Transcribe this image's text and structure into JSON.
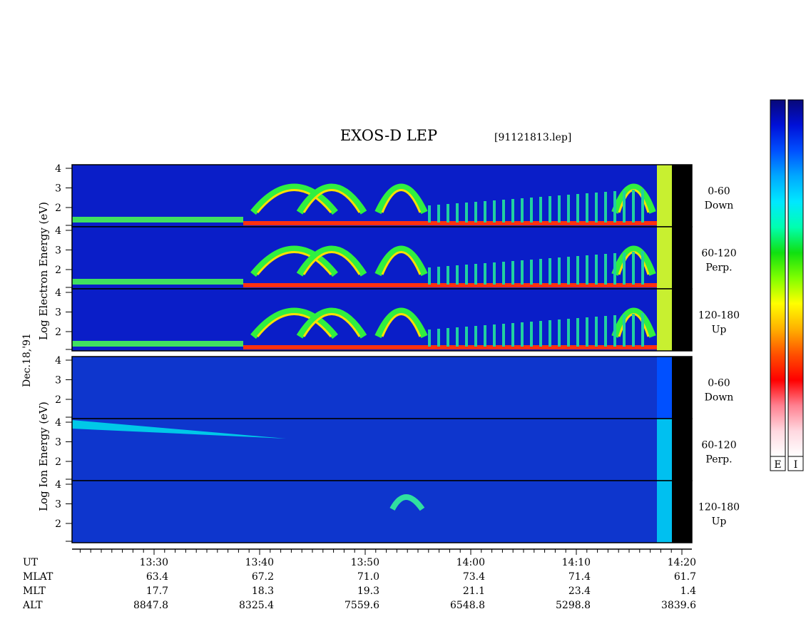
{
  "header": {
    "title": "EXOS-D LEP",
    "filename": "[91121813.lep]"
  },
  "side_labels": {
    "electron": "Log Electron Energy (eV)",
    "date": "Dec.18,'91",
    "ion": "Log Ion Energy (eV)"
  },
  "colorbar": {
    "labels": [
      "E",
      "I"
    ],
    "stops": [
      "#080878",
      "#0010d8",
      "#0050ff",
      "#00a8ff",
      "#00e8ff",
      "#00ffb0",
      "#10e010",
      "#80ff00",
      "#ffff00",
      "#ffb000",
      "#ff5000",
      "#ff0000",
      "#ff8090",
      "#ffd8e0",
      "#ffffff"
    ]
  },
  "chart_data": {
    "type": "heatmap",
    "y_tick_labels": [
      "4",
      "3",
      "2"
    ],
    "panels": [
      {
        "species": "Electron",
        "pitch_angle": "0-60",
        "direction": "Down"
      },
      {
        "species": "Electron",
        "pitch_angle": "60-120",
        "direction": "Perp."
      },
      {
        "species": "Electron",
        "pitch_angle": "120-180",
        "direction": "Up"
      },
      {
        "species": "Ion",
        "pitch_angle": "0-60",
        "direction": "Down"
      },
      {
        "species": "Ion",
        "pitch_angle": "60-120",
        "direction": "Perp."
      },
      {
        "species": "Ion",
        "pitch_angle": "120-180",
        "direction": "Up"
      }
    ],
    "time_axis": {
      "row_labels": [
        "UT",
        "MLAT",
        "MLT",
        "ALT"
      ],
      "columns": [
        {
          "UT": "13:30",
          "MLAT": "63.4",
          "MLT": "17.7",
          "ALT": "8847.8"
        },
        {
          "UT": "13:40",
          "MLAT": "67.2",
          "MLT": "18.3",
          "ALT": "8325.4"
        },
        {
          "UT": "13:50",
          "MLAT": "71.0",
          "MLT": "19.3",
          "ALT": "7559.6"
        },
        {
          "UT": "14:00",
          "MLAT": "73.4",
          "MLT": "21.1",
          "ALT": "6548.8"
        },
        {
          "UT": "14:10",
          "MLAT": "71.4",
          "MLT": "23.4",
          "ALT": "5298.8"
        },
        {
          "UT": "14:20",
          "MLAT": "61.7",
          "MLT": "1.4",
          "ALT": "3839.6"
        }
      ]
    }
  }
}
